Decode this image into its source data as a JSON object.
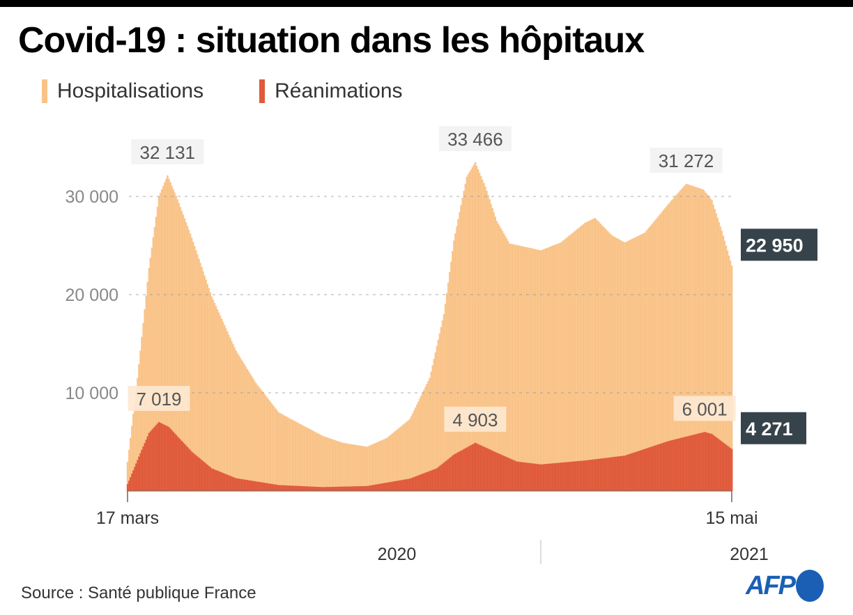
{
  "title": "Covid-19 : situation dans les hôpitaux",
  "source": "Source : Santé publique France",
  "logo": "AFP",
  "chart_data": {
    "type": "bar",
    "title": "Covid-19 : situation dans les hôpitaux",
    "xlabel": "",
    "ylabel": "",
    "ylim": [
      0,
      35000
    ],
    "xrange": [
      "2020-03-17",
      "2021-05-15"
    ],
    "grid": true,
    "legend_placement": "top-left",
    "colors": {
      "hosp": "#f9c388",
      "rea": "#e05a3c",
      "label_dark": "#37434b"
    },
    "yticks": [
      {
        "v": 10000,
        "label": "10 000"
      },
      {
        "v": 20000,
        "label": "20 000"
      },
      {
        "v": 30000,
        "label": "30 000"
      }
    ],
    "xticks": [
      {
        "date": "2020-03-17",
        "label": "17 mars"
      },
      {
        "date": "2021-05-15",
        "label": "15 mai"
      }
    ],
    "years": [
      {
        "label": "2020"
      },
      {
        "label": "2021"
      }
    ],
    "year_divider": "2021-01-01",
    "series": [
      {
        "name": "Hospitalisations",
        "key": "hosp",
        "points": [
          [
            "2020-03-17",
            2972
          ],
          [
            "2020-03-24",
            11500
          ],
          [
            "2020-04-01",
            22700
          ],
          [
            "2020-04-08",
            30000
          ],
          [
            "2020-04-14",
            32131
          ],
          [
            "2020-04-21",
            29700
          ],
          [
            "2020-05-01",
            25800
          ],
          [
            "2020-05-15",
            19800
          ],
          [
            "2020-06-01",
            14300
          ],
          [
            "2020-06-15",
            11000
          ],
          [
            "2020-07-01",
            8000
          ],
          [
            "2020-07-15",
            6900
          ],
          [
            "2020-08-01",
            5600
          ],
          [
            "2020-08-15",
            4900
          ],
          [
            "2020-09-01",
            4500
          ],
          [
            "2020-09-15",
            5400
          ],
          [
            "2020-10-01",
            7300
          ],
          [
            "2020-10-15",
            11500
          ],
          [
            "2020-10-25",
            18000
          ],
          [
            "2020-11-01",
            25500
          ],
          [
            "2020-11-10",
            32000
          ],
          [
            "2020-11-16",
            33466
          ],
          [
            "2020-11-23",
            31000
          ],
          [
            "2020-12-01",
            27500
          ],
          [
            "2020-12-10",
            25200
          ],
          [
            "2021-01-01",
            24500
          ],
          [
            "2021-01-15",
            25300
          ],
          [
            "2021-02-01",
            27300
          ],
          [
            "2021-02-08",
            27800
          ],
          [
            "2021-02-20",
            26000
          ],
          [
            "2021-03-01",
            25300
          ],
          [
            "2021-03-15",
            26300
          ],
          [
            "2021-04-01",
            29300
          ],
          [
            "2021-04-13",
            31272
          ],
          [
            "2021-04-25",
            30700
          ],
          [
            "2021-05-01",
            29600
          ],
          [
            "2021-05-08",
            26500
          ],
          [
            "2021-05-15",
            22950
          ]
        ]
      },
      {
        "name": "Réanimations",
        "key": "rea",
        "points": [
          [
            "2020-03-17",
            700
          ],
          [
            "2020-03-25",
            3500
          ],
          [
            "2020-04-01",
            5900
          ],
          [
            "2020-04-08",
            7019
          ],
          [
            "2020-04-15",
            6500
          ],
          [
            "2020-05-01",
            4000
          ],
          [
            "2020-05-15",
            2300
          ],
          [
            "2020-06-01",
            1300
          ],
          [
            "2020-07-01",
            600
          ],
          [
            "2020-08-01",
            390
          ],
          [
            "2020-09-01",
            500
          ],
          [
            "2020-10-01",
            1250
          ],
          [
            "2020-10-20",
            2300
          ],
          [
            "2020-11-01",
            3700
          ],
          [
            "2020-11-16",
            4903
          ],
          [
            "2020-12-01",
            3900
          ],
          [
            "2020-12-15",
            3000
          ],
          [
            "2021-01-01",
            2700
          ],
          [
            "2021-02-01",
            3100
          ],
          [
            "2021-03-01",
            3600
          ],
          [
            "2021-04-01",
            5100
          ],
          [
            "2021-04-26",
            6001
          ],
          [
            "2021-05-01",
            5800
          ],
          [
            "2021-05-15",
            4271
          ]
        ]
      }
    ],
    "annotations": [
      {
        "series": "hosp",
        "date": "2020-04-14",
        "value": 32131,
        "label": "32 131"
      },
      {
        "series": "hosp",
        "date": "2020-11-16",
        "value": 33466,
        "label": "33 466"
      },
      {
        "series": "hosp",
        "date": "2021-04-13",
        "value": 31272,
        "label": "31 272"
      },
      {
        "series": "rea",
        "date": "2020-04-08",
        "value": 7019,
        "label": "7 019"
      },
      {
        "series": "rea",
        "date": "2020-11-16",
        "value": 4903,
        "label": "4 903"
      },
      {
        "series": "rea",
        "date": "2021-04-26",
        "value": 6001,
        "label": "6 001"
      }
    ],
    "last_values": [
      {
        "series": "hosp",
        "value": 22950,
        "label": "22 950"
      },
      {
        "series": "rea",
        "value": 4271,
        "label": "4 271"
      }
    ]
  }
}
